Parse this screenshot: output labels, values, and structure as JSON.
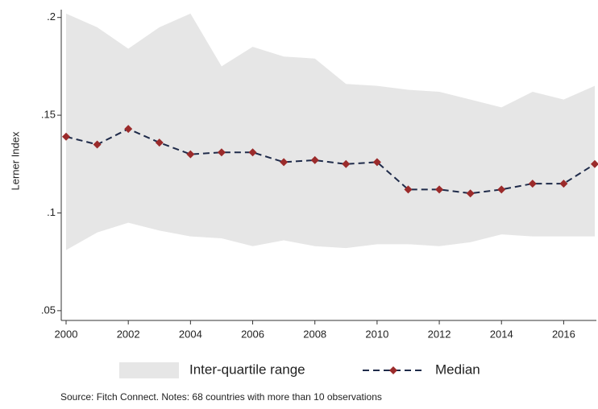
{
  "chart_data": {
    "type": "line",
    "y_label": "Lerner Index",
    "x": [
      2000,
      2001,
      2002,
      2003,
      2004,
      2005,
      2006,
      2007,
      2008,
      2009,
      2010,
      2011,
      2012,
      2013,
      2014,
      2015,
      2016,
      2017
    ],
    "xlim": [
      2000,
      2017
    ],
    "xticks": [
      2000,
      2002,
      2004,
      2006,
      2008,
      2010,
      2012,
      2014,
      2016
    ],
    "ylim": [
      0.045,
      0.204
    ],
    "yticks": [
      {
        "value": 0.05,
        "label": ".05"
      },
      {
        "value": 0.1,
        "label": ".1"
      },
      {
        "value": 0.15,
        "label": ".15"
      },
      {
        "value": 0.2,
        "label": ".2"
      }
    ],
    "series": [
      {
        "name": "Inter-quartile range",
        "color": "#e6e6e6",
        "upper": [
          0.202,
          0.195,
          0.184,
          0.195,
          0.202,
          0.175,
          0.185,
          0.18,
          0.179,
          0.166,
          0.165,
          0.163,
          0.162,
          0.158,
          0.154,
          0.162,
          0.158,
          0.165
        ],
        "lower": [
          0.081,
          0.09,
          0.095,
          0.091,
          0.088,
          0.087,
          0.083,
          0.086,
          0.083,
          0.082,
          0.084,
          0.084,
          0.083,
          0.085,
          0.089,
          0.088,
          0.088,
          0.088
        ]
      },
      {
        "name": "Median",
        "color": "#1f2b4a",
        "marker_color": "#9b2b2b",
        "values": [
          0.139,
          0.135,
          0.143,
          0.136,
          0.13,
          0.131,
          0.131,
          0.126,
          0.127,
          0.125,
          0.126,
          0.112,
          0.112,
          0.11,
          0.112,
          0.115,
          0.115,
          0.125
        ]
      }
    ],
    "source": "Source: Fitch Connect. Notes: 68 countries with more than 10 observations"
  }
}
